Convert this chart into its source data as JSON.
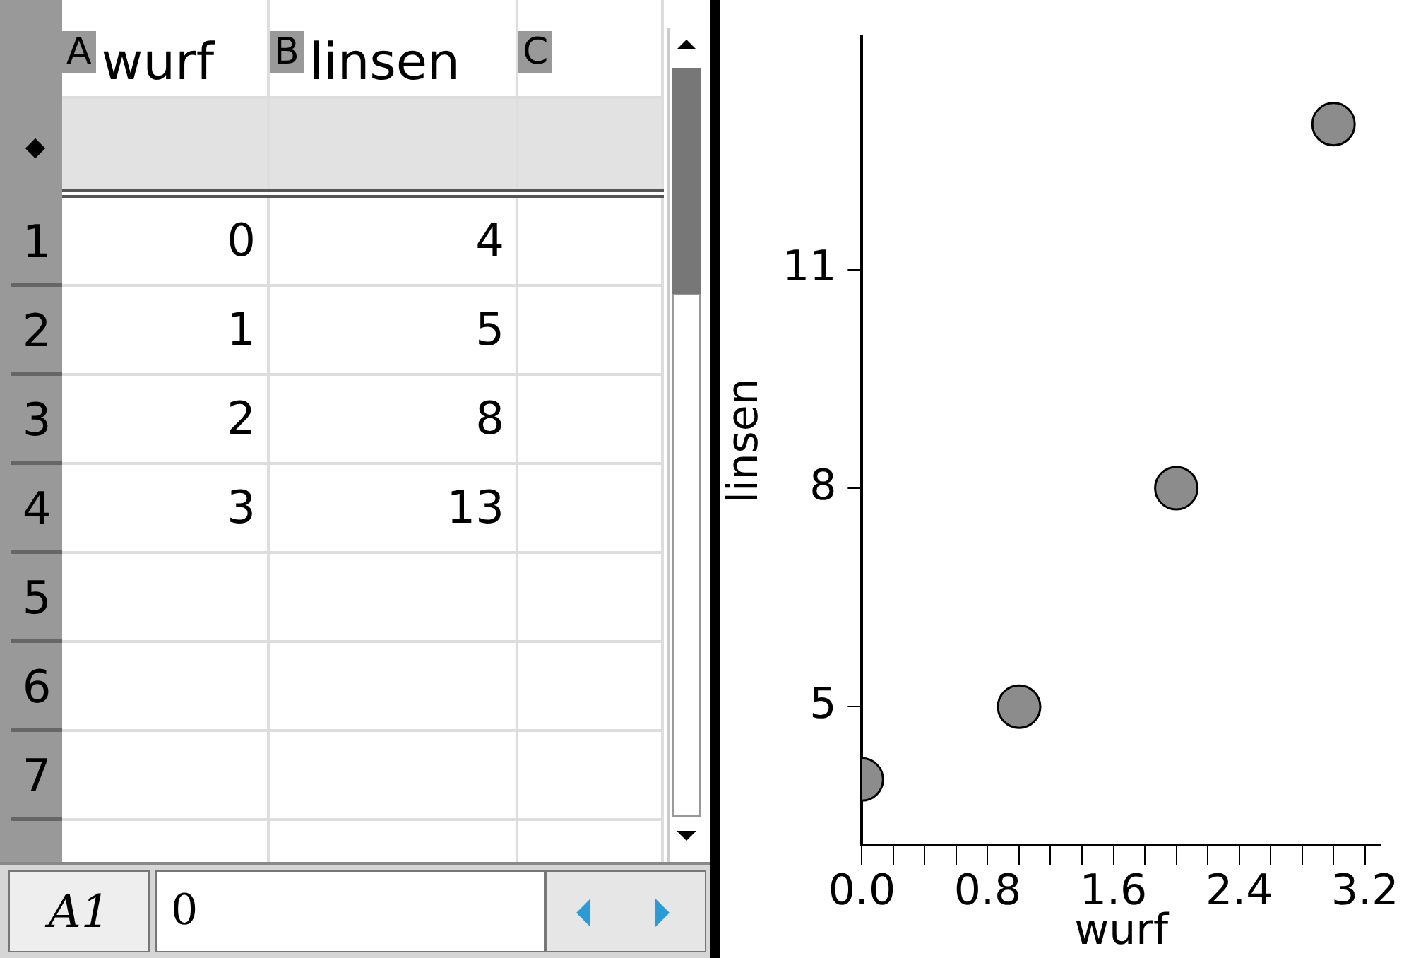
{
  "chart_data": {
    "type": "scatter",
    "xlabel": "wurf",
    "ylabel": "linsen",
    "x": [
      0,
      1,
      2,
      3
    ],
    "values": [
      4,
      5,
      8,
      13
    ],
    "color": "#8c8c8c",
    "marker": "circle",
    "legend": false,
    "grid": false,
    "xlim": [
      0,
      3.3
    ],
    "ylim": [
      3.1,
      14.2
    ],
    "xticks": [
      {
        "value": 0,
        "label": "0.0"
      },
      {
        "value": 0.2,
        "label": null
      },
      {
        "value": 0.4,
        "label": null
      },
      {
        "value": 0.6,
        "label": null
      },
      {
        "value": 0.8,
        "label": "0.8"
      },
      {
        "value": 1,
        "label": null
      },
      {
        "value": 1.2,
        "label": null
      },
      {
        "value": 1.4,
        "label": null
      },
      {
        "value": 1.6,
        "label": "1.6"
      },
      {
        "value": 1.8,
        "label": null
      },
      {
        "value": 2,
        "label": null
      },
      {
        "value": 2.2,
        "label": null
      },
      {
        "value": 2.4,
        "label": "2.4"
      },
      {
        "value": 2.6,
        "label": null
      },
      {
        "value": 2.8,
        "label": null
      },
      {
        "value": 3,
        "label": null
      },
      {
        "value": 3.2,
        "label": "3.2"
      }
    ],
    "yticks": [
      5,
      8,
      11
    ],
    "annotations": [
      "A",
      "B",
      "C",
      "1",
      "2",
      "3",
      "4",
      "5",
      "6",
      "7",
      "A1",
      "0",
      "4",
      "5",
      "8",
      "13"
    ]
  }
}
